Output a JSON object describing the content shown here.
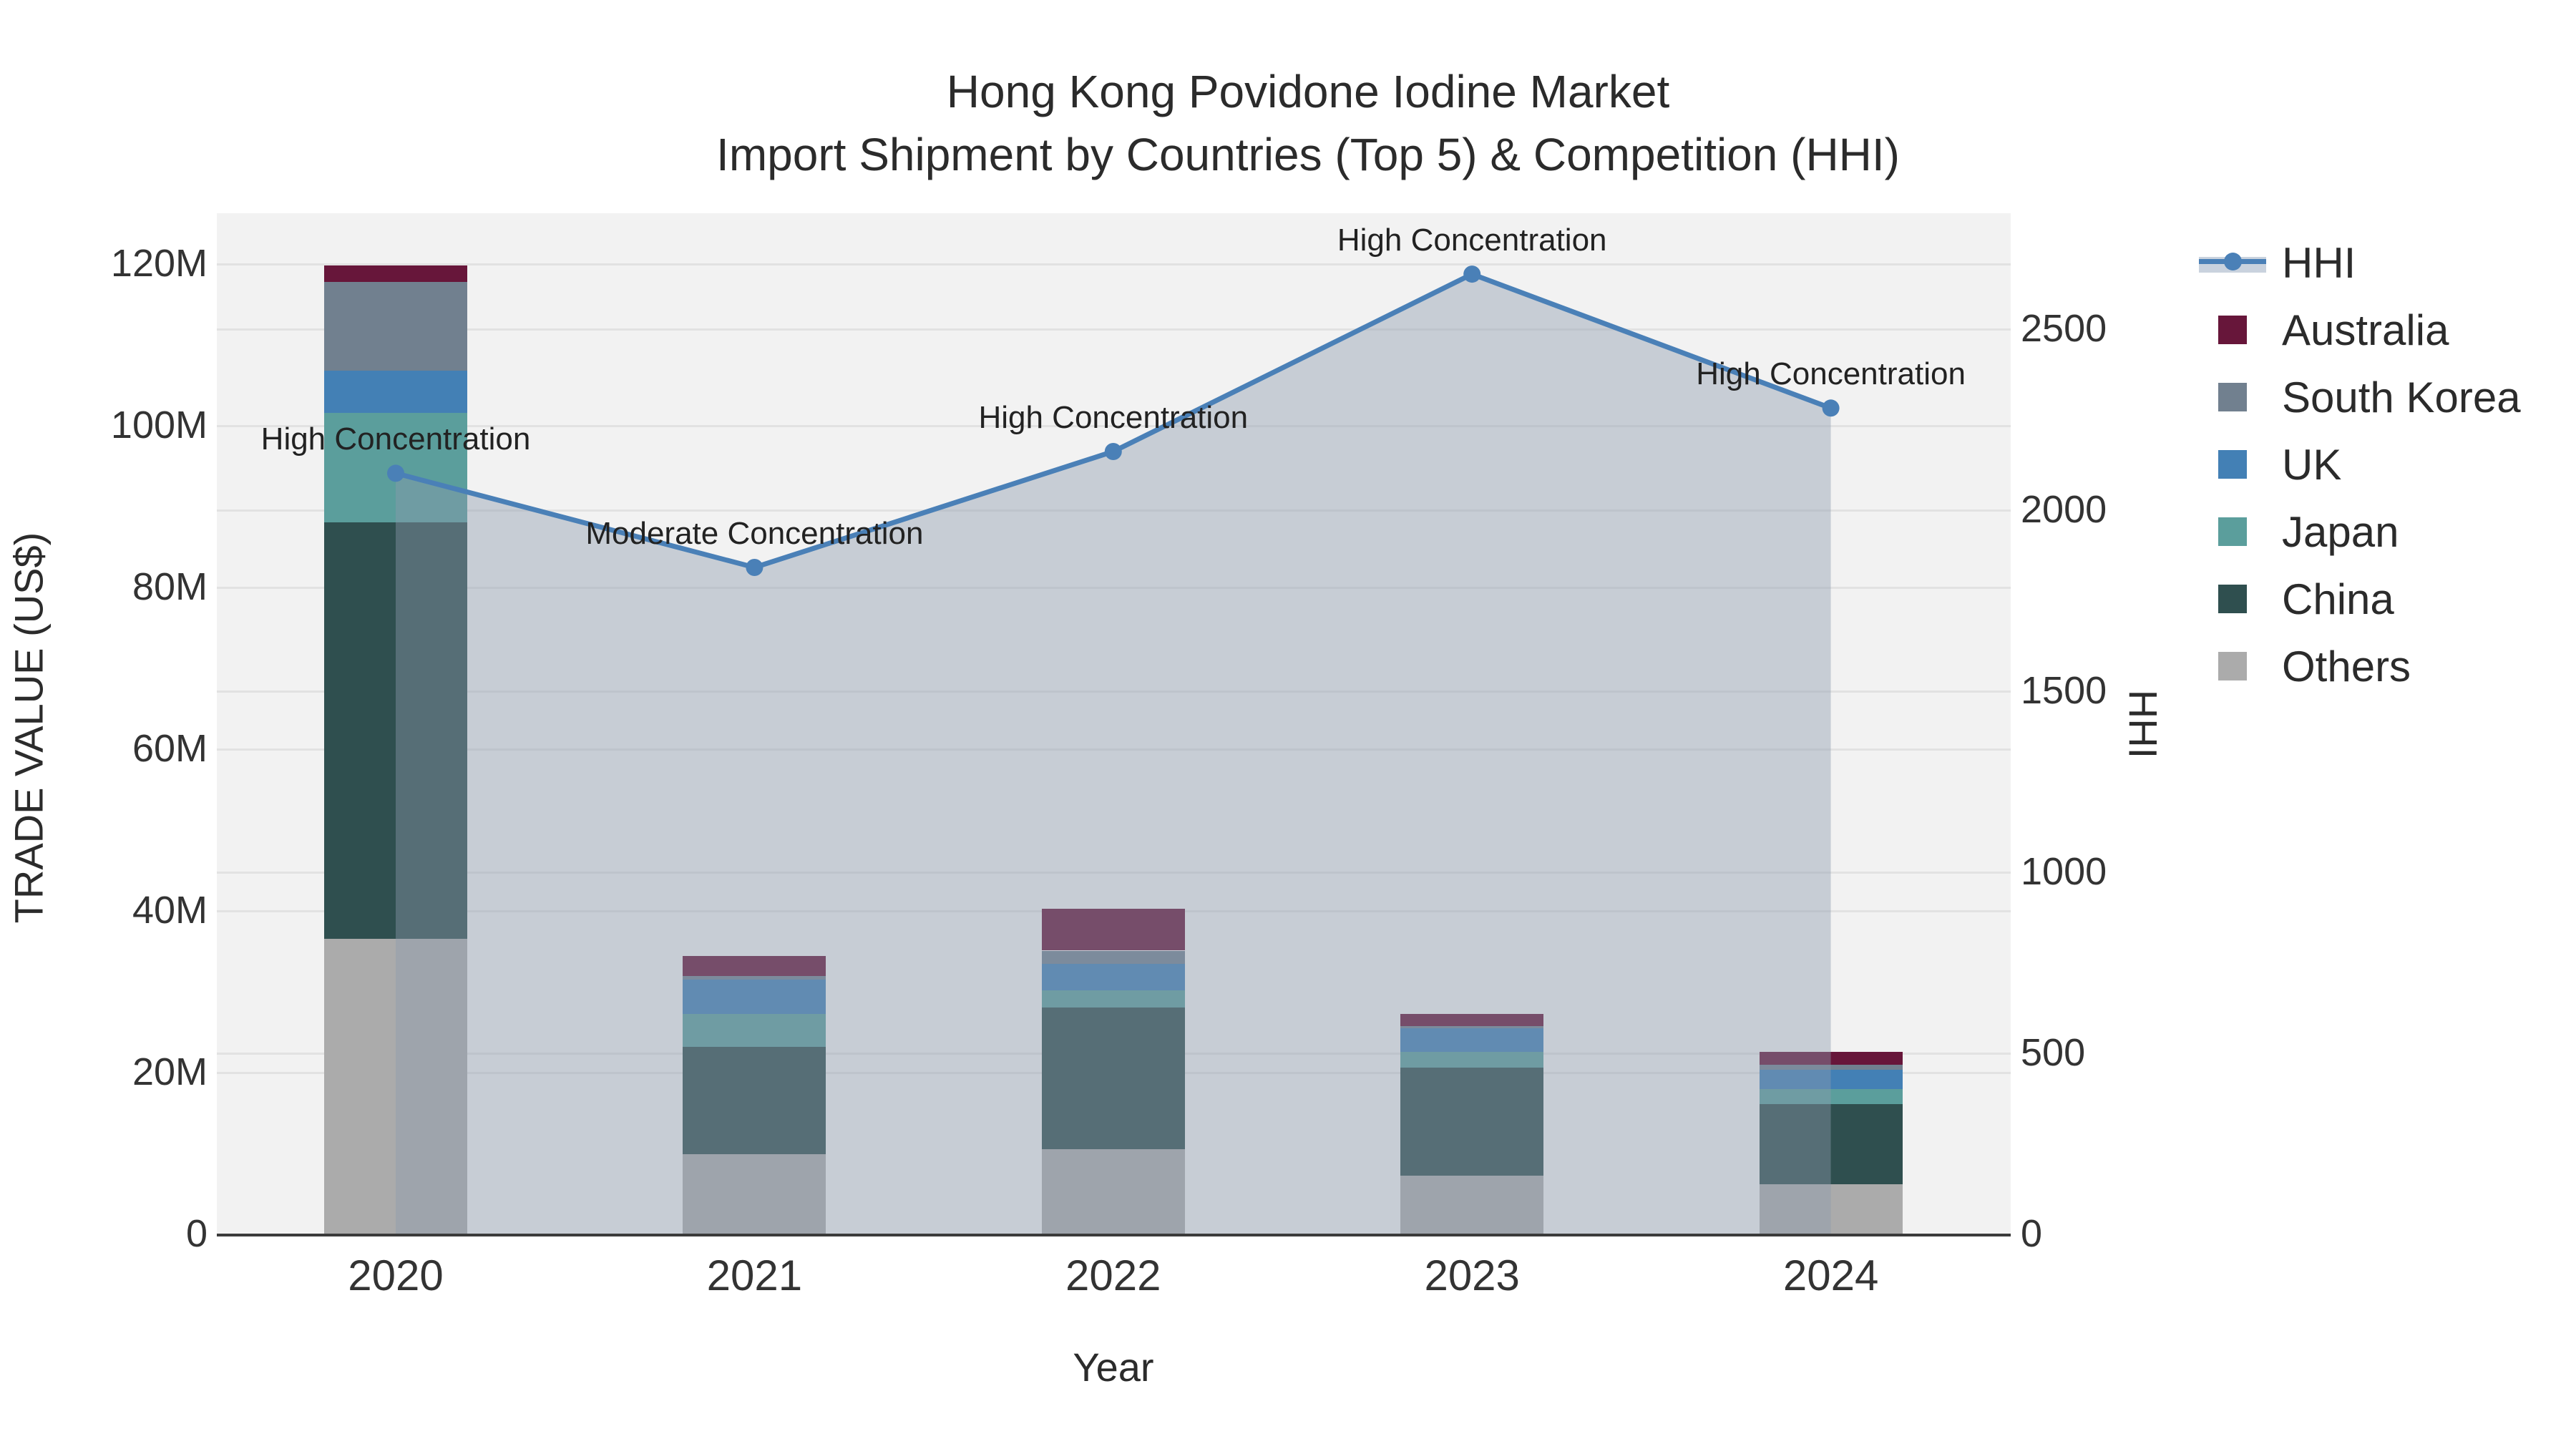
{
  "title": {
    "line1": "Hong Kong Povidone Iodine Market",
    "line2": "Import Shipment by Countries (Top 5) & Competition (HHI)"
  },
  "legend": {
    "items": [
      {
        "label": "HHI",
        "type": "line",
        "color": "#4a80b7"
      },
      {
        "label": "Australia",
        "type": "square",
        "color": "#67163a"
      },
      {
        "label": "South Korea",
        "type": "square",
        "color": "#71808f"
      },
      {
        "label": "UK",
        "type": "square",
        "color": "#4380b5"
      },
      {
        "label": "Japan",
        "type": "square",
        "color": "#5b9e9c"
      },
      {
        "label": "China",
        "type": "square",
        "color": "#2f4f4f"
      },
      {
        "label": "Others",
        "type": "square",
        "color": "#ababab"
      }
    ]
  },
  "colors": {
    "plot_background": "#f2f2f2",
    "gridline": "#e2e2e2",
    "axis_line": "#3b3b3b",
    "hhi_line": "#4a80b7",
    "hhi_area_fill": "rgba(141,154,175,0.42)"
  },
  "chart_data": {
    "type": "combo: stacked bar + line-area on secondary axis",
    "title": "Hong Kong Povidone Iodine Market — Import Shipment by Countries (Top 5) & Competition (HHI)",
    "categories": [
      "2020",
      "2021",
      "2022",
      "2023",
      "2024"
    ],
    "bar_unit": "million US$",
    "series": [
      {
        "name": "Others",
        "color": "#ababab",
        "values": [
          36.5,
          9.8,
          10.4,
          7.2,
          6.1
        ]
      },
      {
        "name": "China",
        "color": "#2f4f4f",
        "values": [
          51.5,
          13.3,
          17.6,
          13.3,
          9.9
        ]
      },
      {
        "name": "Japan",
        "color": "#5b9e9c",
        "values": [
          13.5,
          4.1,
          2.1,
          2.0,
          1.9
        ]
      },
      {
        "name": "UK",
        "color": "#4380b5",
        "values": [
          5.2,
          4.2,
          3.3,
          2.9,
          2.4
        ]
      },
      {
        "name": "South Korea",
        "color": "#71808f",
        "values": [
          11.0,
          0.5,
          1.6,
          0.3,
          0.6
        ]
      },
      {
        "name": "Australia",
        "color": "#67163a",
        "values": [
          2.0,
          2.4,
          5.2,
          1.5,
          1.6
        ]
      }
    ],
    "bar_totals": [
      119.7,
      34.3,
      40.2,
      27.2,
      22.5
    ],
    "line_series": {
      "name": "HHI",
      "color": "#4a80b7",
      "area_fill": "rgba(141,154,175,0.42)",
      "values": [
        2100,
        1840,
        2160,
        2650,
        2280
      ]
    },
    "annotations": [
      {
        "category": "2020",
        "text": "High Concentration"
      },
      {
        "category": "2021",
        "text": "Moderate Concentration"
      },
      {
        "category": "2022",
        "text": "High Concentration"
      },
      {
        "category": "2023",
        "text": "High Concentration"
      },
      {
        "category": "2024",
        "text": "High Concentration"
      }
    ],
    "left_axis": {
      "title": "TRADE VALUE (US$)",
      "tick_labels": [
        "0",
        "20M",
        "40M",
        "60M",
        "80M",
        "100M",
        "120M"
      ],
      "tick_values": [
        0,
        20,
        40,
        60,
        80,
        100,
        120
      ],
      "range_millions": [
        0,
        126
      ]
    },
    "right_axis": {
      "title": "HHI",
      "tick_labels": [
        "0",
        "500",
        "1000",
        "1500",
        "2000",
        "2500"
      ],
      "tick_values": [
        0,
        500,
        1000,
        1500,
        2000,
        2500
      ],
      "range": [
        0,
        2818
      ]
    },
    "x_axis": {
      "title": "Year"
    },
    "legend_position": "right",
    "grid": true
  }
}
